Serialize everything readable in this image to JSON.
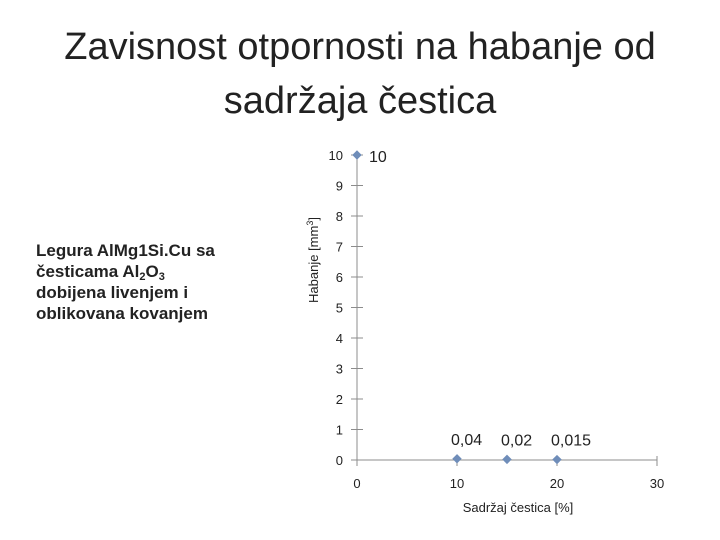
{
  "title_lines": [
    "Zavisnost otpornosti na habanje od",
    "sadržaja čestica"
  ],
  "description": {
    "line1": "Legura AlMg1Si.Cu sa",
    "line2_pre": "česticama Al",
    "sub1": "2",
    "line2_mid": "O",
    "sub2": "3",
    "line3": "dobijena livenjem i",
    "line4": "oblikovana kovanjem"
  },
  "chart_data": {
    "type": "scatter",
    "title": "Zavisnost otpornosti na habanje od sadržaja čestica",
    "xlabel": "Sadržaj čestica [%]",
    "ylabel_parts": [
      "Habanje [mm",
      "3",
      "]"
    ],
    "xlim": [
      0,
      30
    ],
    "ylim": [
      0,
      10
    ],
    "x_ticks": [
      "0",
      "10",
      "20",
      "30"
    ],
    "y_ticks": [
      "0",
      "1",
      "2",
      "3",
      "4",
      "5",
      "6",
      "7",
      "8",
      "9",
      "10"
    ],
    "points": [
      {
        "x": 0,
        "y": 10,
        "label": "10"
      },
      {
        "x": 10,
        "y": 0.04,
        "label": "0,04"
      },
      {
        "x": 15,
        "y": 0.02,
        "label": "0,02"
      },
      {
        "x": 20,
        "y": 0.015,
        "label": "0,015"
      }
    ],
    "colors": {
      "axis": "#8c8c8c",
      "marker": "#6f8db9"
    }
  }
}
